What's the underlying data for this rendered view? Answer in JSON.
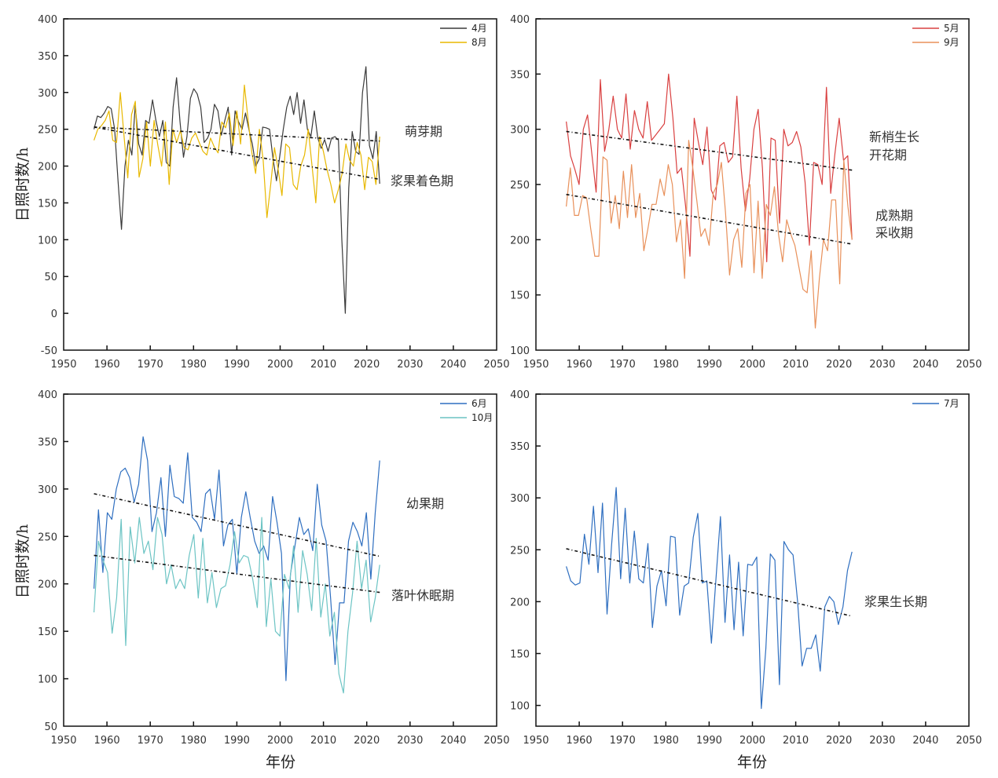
{
  "chart_data": [
    {
      "type": "line",
      "panel": "top-left",
      "title": "",
      "xlabel": "",
      "ylabel": "日照时数/h",
      "xlim": [
        1950,
        2050
      ],
      "ylim": [
        -50,
        400
      ],
      "xticks": [
        1950,
        1960,
        1970,
        1980,
        1990,
        2000,
        2010,
        2020,
        2030,
        2040,
        2050
      ],
      "yticks": [
        -50,
        0,
        50,
        100,
        150,
        200,
        250,
        300,
        350,
        400
      ],
      "grid": false,
      "legend": "top-right",
      "x_start": 1957,
      "series": [
        {
          "name": "4月",
          "color": "#3a3a3a",
          "values": [
            250,
            268,
            266,
            272,
            281,
            278,
            250,
            180,
            114,
            200,
            235,
            215,
            282,
            230,
            215,
            262,
            258,
            290,
            262,
            240,
            262,
            205,
            200,
            280,
            320,
            260,
            212,
            240,
            292,
            305,
            298,
            280,
            232,
            238,
            250,
            284,
            275,
            242,
            262,
            280,
            215,
            275,
            260,
            250,
            272,
            250,
            230,
            200,
            210,
            253,
            252,
            250,
            210,
            180,
            215,
            250,
            280,
            295,
            270,
            300,
            258,
            290,
            250,
            240,
            275,
            238,
            224,
            236,
            220,
            238,
            240,
            235,
            100,
            0,
            170,
            247,
            220,
            216,
            300,
            335,
            228,
            210,
            247,
            176
          ]
        },
        {
          "name": "8月",
          "color": "#e8b800",
          "values": [
            235,
            250,
            255,
            262,
            275,
            235,
            232,
            300,
            240,
            184,
            270,
            288,
            185,
            210,
            260,
            200,
            262,
            228,
            200,
            260,
            175,
            250,
            232,
            248,
            225,
            222,
            238,
            245,
            232,
            220,
            215,
            238,
            226,
            218,
            260,
            252,
            272,
            228,
            275,
            230,
            310,
            262,
            218,
            190,
            250,
            208,
            130,
            175,
            225,
            195,
            160,
            230,
            225,
            175,
            168,
            200,
            215,
            250,
            200,
            150,
            240,
            220,
            195,
            175,
            150,
            168,
            190,
            230,
            208,
            200,
            232,
            215,
            168,
            212,
            206,
            175,
            240
          ]
        }
      ],
      "trendlines": [
        {
          "series": "4月",
          "start": 253,
          "end": 234
        },
        {
          "series": "8月",
          "start": 253,
          "end": 182
        }
      ],
      "annotations": [
        "萌芽期",
        "浆果着色期"
      ]
    },
    {
      "type": "line",
      "panel": "top-right",
      "title": "",
      "xlabel": "",
      "ylabel": "",
      "xlim": [
        1950,
        2050
      ],
      "ylim": [
        100,
        400
      ],
      "xticks": [
        1950,
        1960,
        1970,
        1980,
        1990,
        2000,
        2010,
        2020,
        2030,
        2040,
        2050
      ],
      "yticks": [
        100,
        150,
        200,
        250,
        300,
        350,
        400
      ],
      "grid": false,
      "legend": "top-right",
      "x_start": 1957,
      "series": [
        {
          "name": "5月",
          "color": "#d94040",
          "values": [
            307,
            276,
            264,
            250,
            300,
            313,
            278,
            243,
            345,
            280,
            300,
            330,
            300,
            292,
            332,
            282,
            317,
            300,
            292,
            325,
            290,
            295,
            300,
            305,
            350,
            310,
            260,
            265,
            230,
            185,
            310,
            288,
            268,
            302,
            245,
            236,
            285,
            288,
            270,
            275,
            330,
            265,
            226,
            255,
            300,
            318,
            265,
            180,
            292,
            290,
            215,
            300,
            285,
            288,
            298,
            284,
            252,
            195,
            270,
            268,
            250,
            338,
            242,
            278,
            310,
            272,
            276,
            200
          ]
        },
        {
          "name": "9月",
          "color": "#e8905a",
          "values": [
            230,
            265,
            222,
            222,
            240,
            238,
            210,
            185,
            185,
            275,
            272,
            215,
            240,
            210,
            262,
            220,
            268,
            220,
            242,
            190,
            210,
            232,
            232,
            255,
            240,
            268,
            250,
            198,
            218,
            165,
            290,
            265,
            235,
            203,
            210,
            195,
            242,
            250,
            270,
            225,
            168,
            200,
            210,
            175,
            242,
            250,
            170,
            235,
            165,
            232,
            222,
            248,
            205,
            180,
            218,
            205,
            195,
            175,
            155,
            152,
            190,
            120,
            165,
            200,
            190,
            236,
            236,
            160,
            272,
            230,
            200
          ]
        }
      ],
      "trendlines": [
        {
          "series": "5月",
          "start": 298,
          "end": 263
        },
        {
          "series": "9月",
          "start": 241,
          "end": 196
        }
      ],
      "annotations": [
        "新梢生长",
        "开花期",
        "成熟期",
        "采收期"
      ]
    },
    {
      "type": "line",
      "panel": "bottom-left",
      "title": "",
      "xlabel": "年份",
      "ylabel": "日照时数/h",
      "xlim": [
        1950,
        2050
      ],
      "ylim": [
        50,
        400
      ],
      "xticks": [
        1950,
        1960,
        1970,
        1980,
        1990,
        2000,
        2010,
        2020,
        2030,
        2040,
        2050
      ],
      "yticks": [
        50,
        100,
        150,
        200,
        250,
        300,
        350,
        400
      ],
      "grid": false,
      "legend": "top-right",
      "x_start": 1957,
      "series": [
        {
          "name": "6月",
          "color": "#2f6fc0",
          "values": [
            195,
            278,
            212,
            275,
            268,
            300,
            318,
            322,
            312,
            286,
            305,
            355,
            330,
            255,
            275,
            312,
            250,
            325,
            292,
            290,
            285,
            338,
            270,
            265,
            255,
            295,
            300,
            268,
            320,
            240,
            262,
            268,
            210,
            270,
            297,
            270,
            245,
            232,
            240,
            225,
            292,
            265,
            232,
            98,
            210,
            240,
            270,
            252,
            258,
            235,
            305,
            262,
            245,
            185,
            115,
            180,
            180,
            245,
            265,
            255,
            240,
            275,
            205,
            275,
            330
          ]
        },
        {
          "name": "10月",
          "color": "#6cc4c4",
          "values": [
            170,
            245,
            225,
            212,
            148,
            185,
            268,
            135,
            260,
            222,
            270,
            232,
            245,
            215,
            270,
            252,
            200,
            220,
            195,
            205,
            195,
            230,
            252,
            185,
            248,
            180,
            212,
            175,
            195,
            198,
            220,
            255,
            222,
            230,
            228,
            205,
            175,
            270,
            155,
            205,
            150,
            145,
            210,
            195,
            240,
            170,
            235,
            210,
            172,
            248,
            165,
            200,
            145,
            170,
            105,
            85,
            150,
            190,
            245,
            195,
            225,
            160,
            185,
            220
          ]
        }
      ],
      "trendlines": [
        {
          "series": "6月",
          "start": 295,
          "end": 229
        },
        {
          "series": "10月",
          "start": 230,
          "end": 191
        }
      ],
      "annotations": [
        "幼果期",
        "落叶休眠期"
      ]
    },
    {
      "type": "line",
      "panel": "bottom-right",
      "title": "",
      "xlabel": "年份",
      "ylabel": "",
      "xlim": [
        1950,
        2050
      ],
      "ylim": [
        80,
        400
      ],
      "xticks": [
        1950,
        1960,
        1970,
        1980,
        1990,
        2000,
        2010,
        2020,
        2030,
        2040,
        2050
      ],
      "yticks": [
        100,
        150,
        200,
        250,
        300,
        350,
        400
      ],
      "grid": false,
      "legend": "top-right",
      "x_start": 1957,
      "series": [
        {
          "name": "7月",
          "color": "#2f6fc0",
          "values": [
            234,
            220,
            216,
            218,
            265,
            236,
            292,
            228,
            295,
            188,
            255,
            310,
            222,
            290,
            218,
            268,
            222,
            218,
            256,
            175,
            215,
            230,
            196,
            263,
            262,
            187,
            215,
            218,
            262,
            285,
            218,
            220,
            160,
            222,
            282,
            180,
            245,
            173,
            238,
            167,
            236,
            235,
            243,
            97,
            155,
            246,
            240,
            120,
            258,
            250,
            245,
            200,
            138,
            155,
            155,
            168,
            133,
            195,
            205,
            200,
            178,
            195,
            230,
            248
          ]
        }
      ],
      "trendlines": [
        {
          "series": "7月",
          "start": 251,
          "end": 186
        }
      ],
      "annotations": [
        "浆果生长期"
      ]
    }
  ]
}
